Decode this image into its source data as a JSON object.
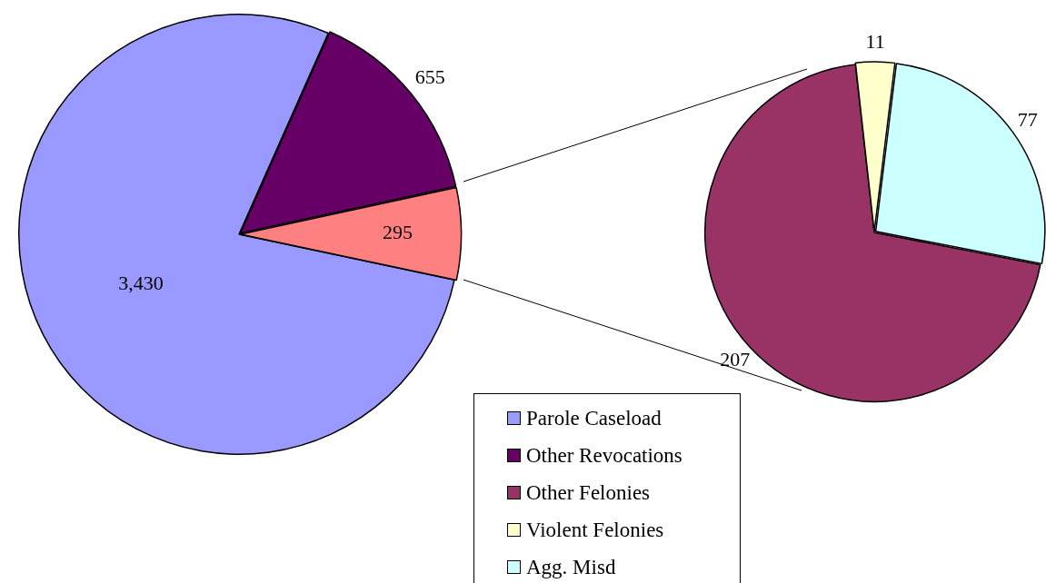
{
  "chart_data": [
    {
      "type": "pie",
      "categories": [
        "Parole Caseload",
        "Other Revocations",
        null
      ],
      "values": [
        3430,
        655,
        295
      ],
      "colors": [
        "#9999ff",
        "#660066",
        "#ff8080"
      ],
      "value_labels": [
        "3,430",
        "655",
        "295"
      ],
      "legend": "bottom"
    },
    {
      "type": "pie",
      "categories": [
        "Other Felonies",
        "Violent Felonies",
        "Agg. Misd"
      ],
      "values": [
        207,
        11,
        77
      ],
      "colors": [
        "#993366",
        "#ffffcc",
        "#ccffff"
      ],
      "data_labels": true,
      "legend": "bottom"
    }
  ]
}
